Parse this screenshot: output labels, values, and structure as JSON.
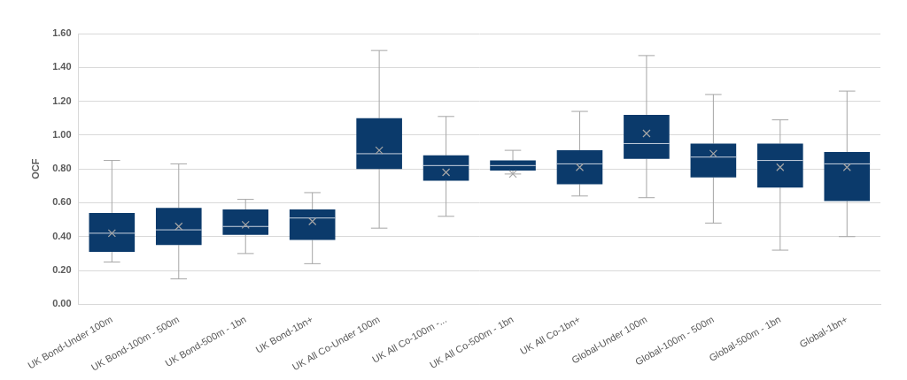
{
  "chart_data": {
    "type": "boxplot",
    "y_label": "OCF",
    "categories": [
      "UK Bond-Under 100m",
      "UK Bond-100m - 500m",
      "UK Bond-500m - 1bn",
      "UK Bond-1bn+",
      "UK All Co-Under 100m",
      "UK All Co-100m -...",
      "UK All Co-500m - 1bn",
      "UK All Co-1bn+",
      "Global-Under 100m",
      "Global-100m - 500m",
      "Global-500m - 1bn",
      "Global-1bn+"
    ],
    "min": [
      0.25,
      0.15,
      0.3,
      0.24,
      0.45,
      0.52,
      0.77,
      0.64,
      0.63,
      0.48,
      0.32,
      0.4
    ],
    "q1": [
      0.31,
      0.35,
      0.41,
      0.38,
      0.8,
      0.73,
      0.79,
      0.71,
      0.86,
      0.75,
      0.69,
      0.61
    ],
    "median": [
      0.42,
      0.44,
      0.46,
      0.51,
      0.89,
      0.82,
      0.82,
      0.83,
      0.95,
      0.87,
      0.85,
      0.83
    ],
    "q3": [
      0.54,
      0.57,
      0.56,
      0.56,
      1.1,
      0.88,
      0.85,
      0.91,
      1.12,
      0.95,
      0.95,
      0.9
    ],
    "max": [
      0.85,
      0.83,
      0.62,
      0.66,
      1.5,
      1.11,
      0.91,
      1.14,
      1.47,
      1.24,
      1.09,
      1.26
    ],
    "mean": [
      0.42,
      0.46,
      0.47,
      0.49,
      0.91,
      0.78,
      0.77,
      0.81,
      1.01,
      0.89,
      0.81,
      0.81
    ],
    "color": "#0b3a6b",
    "ylim": [
      0,
      1.6
    ],
    "yticks": [
      {
        "value": 0,
        "label": "0.00"
      },
      {
        "value": 0.2,
        "label": "0.20"
      },
      {
        "value": 0.4,
        "label": "0.40"
      },
      {
        "value": 0.6,
        "label": "0.60"
      },
      {
        "value": 0.8,
        "label": "0.80"
      },
      {
        "value": 1.0,
        "label": "1.00"
      },
      {
        "value": 1.2,
        "label": "1.20"
      },
      {
        "value": 1.4,
        "label": "1.40"
      },
      {
        "value": 1.6,
        "label": "1.60"
      }
    ],
    "grid": true
  }
}
